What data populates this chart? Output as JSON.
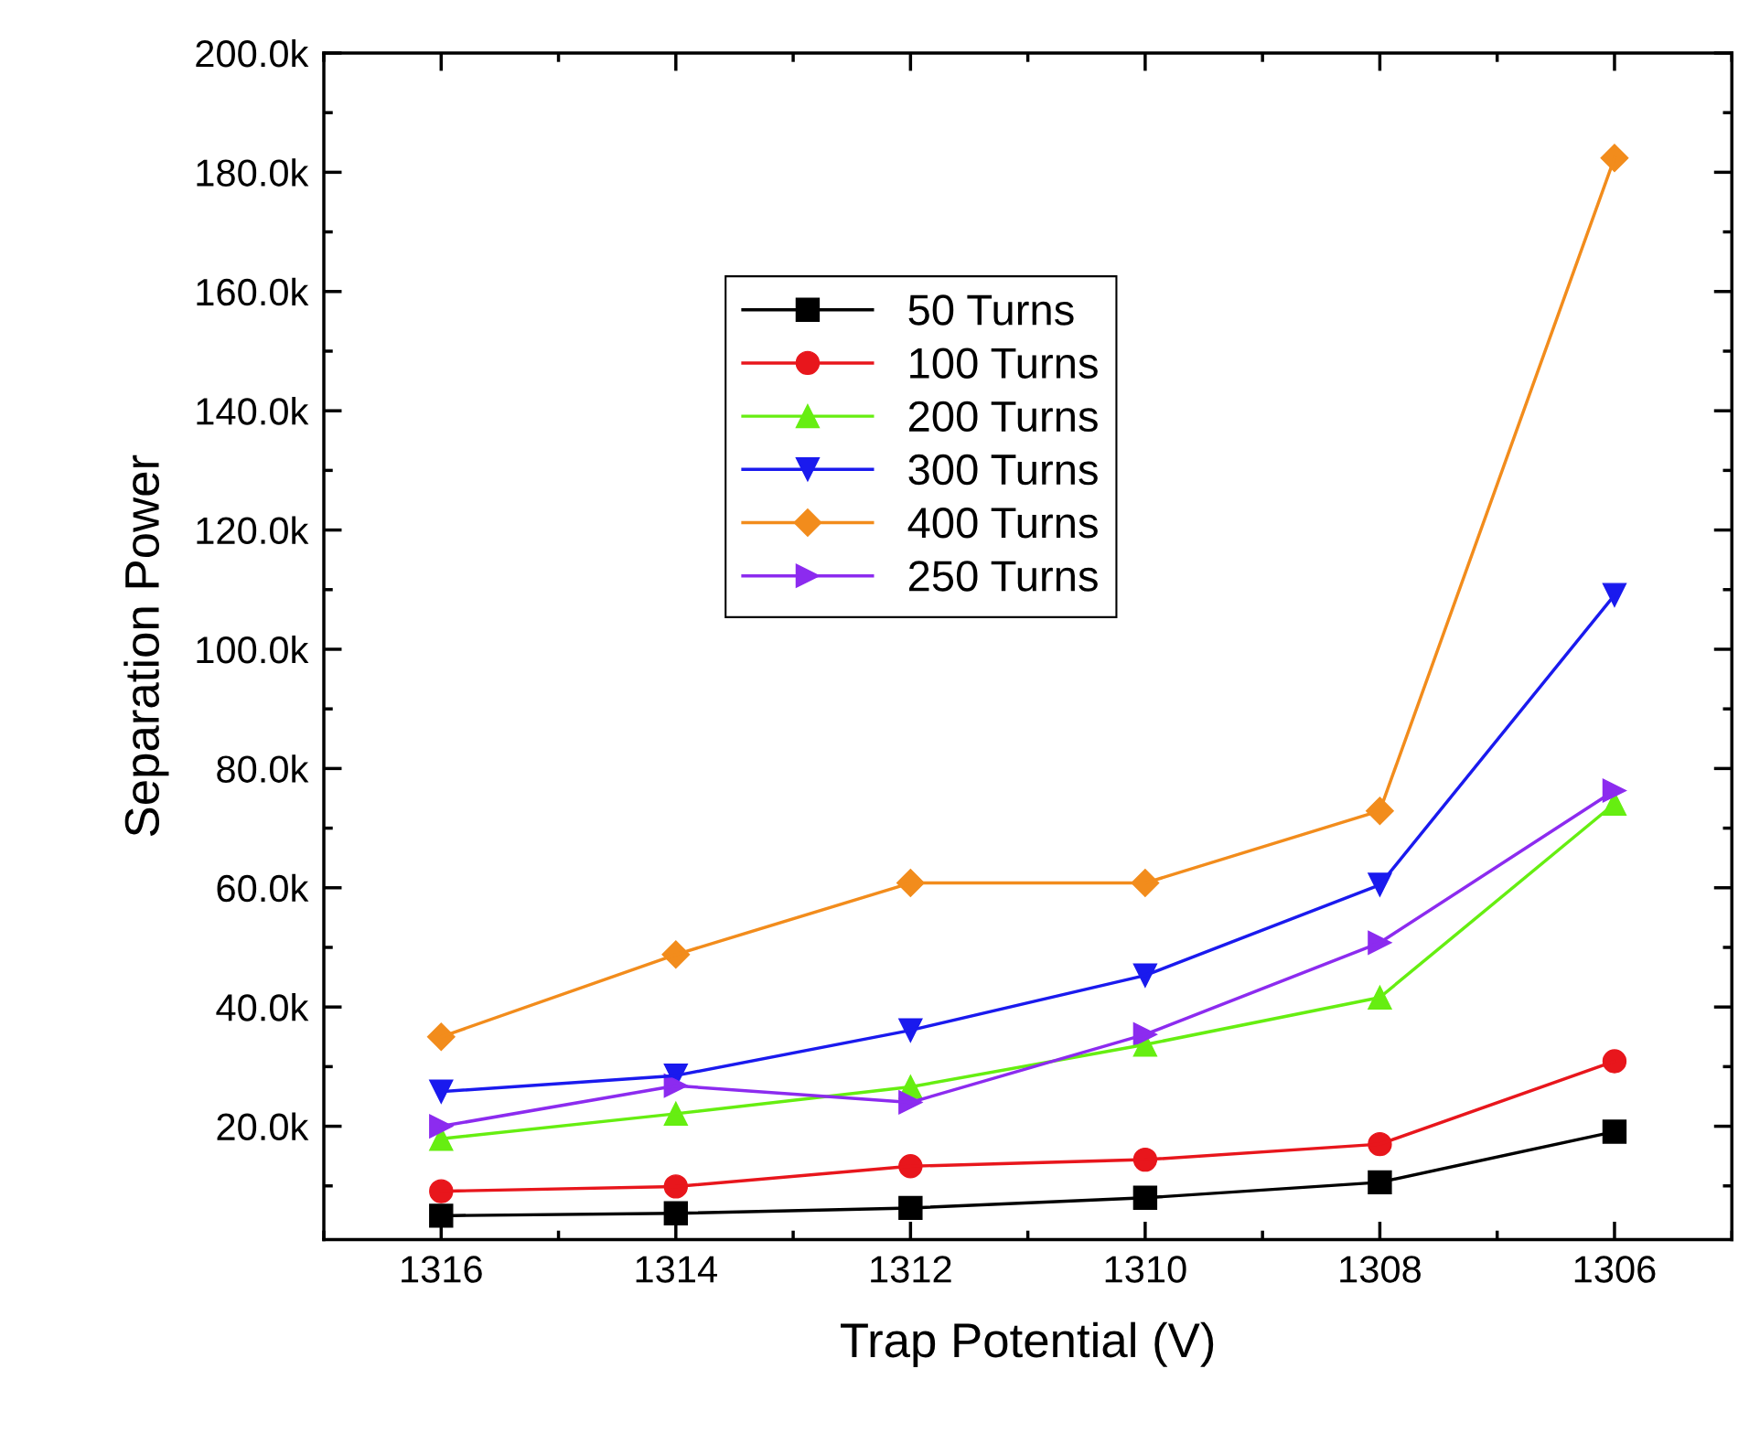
{
  "chart_data": {
    "type": "line",
    "xlabel": "Trap Potential (V)",
    "ylabel": "Separation Power",
    "x": [
      1316,
      1314,
      1312,
      1310,
      1308,
      1306
    ],
    "xlim": [
      1317,
      1305
    ],
    "xticks": [
      1316,
      1314,
      1312,
      1310,
      1308,
      1306
    ],
    "ylim": [
      1000,
      200000
    ],
    "yticks": [
      {
        "value": 20000,
        "label": "20.0k"
      },
      {
        "value": 40000,
        "label": "40.0k"
      },
      {
        "value": 60000,
        "label": "60.0k"
      },
      {
        "value": 80000,
        "label": "80.0k"
      },
      {
        "value": 100000,
        "label": "100.0k"
      },
      {
        "value": 120000,
        "label": "120.0k"
      },
      {
        "value": 140000,
        "label": "140.0k"
      },
      {
        "value": 160000,
        "label": "160.0k"
      },
      {
        "value": 180000,
        "label": "180.0k"
      },
      {
        "value": 200000,
        "label": "200.0k"
      }
    ],
    "grid": false,
    "legend": "top left",
    "line_style": "solid",
    "series": [
      {
        "name": "50 Turns",
        "color": "#000000",
        "marker": "square",
        "values": [
          5000,
          5400,
          6300,
          8000,
          10600,
          19100
        ]
      },
      {
        "name": "100 Turns",
        "color": "#e8161c",
        "marker": "circle",
        "values": [
          9100,
          9900,
          13300,
          14400,
          17000,
          30900
        ]
      },
      {
        "name": "200 Turns",
        "color": "#66ee11",
        "marker": "triangle",
        "values": [
          17900,
          22100,
          26600,
          33700,
          41600,
          74100
        ]
      },
      {
        "name": "300 Turns",
        "color": "#1a1aee",
        "marker": "triangle-down",
        "values": [
          25800,
          28500,
          36100,
          45300,
          60500,
          109100
        ]
      },
      {
        "name": "400 Turns",
        "color": "#f28c1c",
        "marker": "diamond",
        "values": [
          35000,
          48800,
          60800,
          60800,
          72900,
          182400
        ]
      },
      {
        "name": "250 Turns",
        "color": "#8c2bef",
        "marker": "triangle-right",
        "values": [
          20000,
          26800,
          24000,
          35400,
          50800,
          76300
        ]
      }
    ]
  }
}
